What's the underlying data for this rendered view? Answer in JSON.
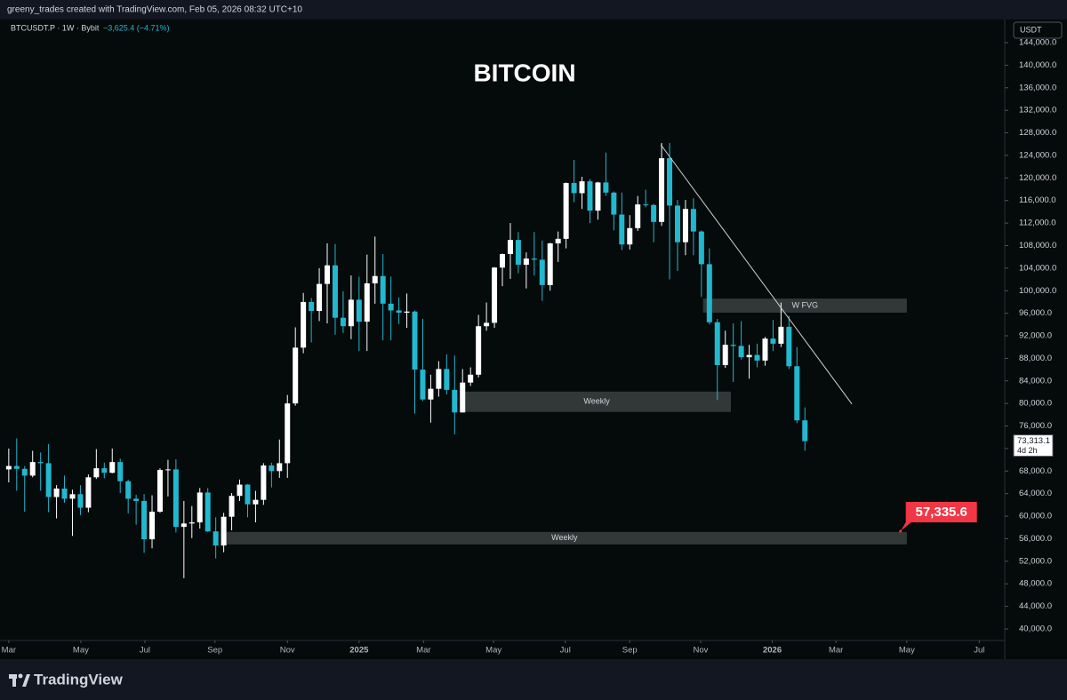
{
  "chart_data": {
    "type": "candlestick",
    "header": "greeny_trades created with TradingView.com, Feb 05, 2026 08:32 UTC+10",
    "symbol": "BTCUSDT.P · 1W · Bybit",
    "change": "−3,625.4 (−4.71%)",
    "title": "BITCOIN",
    "currency": "USDT",
    "footer": "TradingView",
    "up_color": "#ffffff",
    "down_color": "#22b8cf",
    "open": [
      68300,
      68900,
      68400,
      67200,
      69600,
      69400,
      63400,
      64900,
      63100,
      63900,
      61500,
      66900,
      68500,
      67700,
      69600,
      66200,
      63100,
      62700,
      55900,
      60800,
      68200,
      68300,
      58100,
      58700,
      58900,
      64200,
      57300,
      54800,
      59900,
      63600,
      65600,
      62100,
      62900,
      69000,
      68000,
      69400,
      80000,
      89900,
      98000,
      96400,
      101200,
      104500,
      95200,
      93700,
      98400,
      94500,
      101300,
      102600,
      97700,
      96500,
      96100,
      96300,
      86000,
      80700,
      82600,
      86100,
      82400,
      78400,
      83700,
      85100,
      93700,
      94300,
      104100,
      106500,
      109000,
      104600,
      105700,
      105500,
      101000,
      108400,
      109200,
      119100,
      117300,
      119400,
      114200,
      119200,
      117400,
      113500,
      108200,
      111100,
      115300,
      115200,
      112200,
      123500,
      115100,
      108600,
      114500,
      110500,
      104700,
      94400,
      86800,
      90400,
      90200,
      88200,
      88600,
      87600,
      91500,
      90600,
      93600,
      86600,
      77000
    ],
    "high": [
      72000,
      73800,
      68900,
      71600,
      71300,
      72800,
      65500,
      67200,
      64700,
      65500,
      67400,
      71900,
      69500,
      72000,
      70200,
      66500,
      63800,
      63900,
      63700,
      68500,
      70000,
      70100,
      62700,
      61800,
      65000,
      65000,
      59800,
      60600,
      64100,
      66500,
      65700,
      64500,
      69400,
      69500,
      73600,
      81500,
      93500,
      99600,
      98700,
      104000,
      108400,
      108300,
      99900,
      102700,
      102500,
      106400,
      109600,
      106500,
      102500,
      98800,
      99500,
      96500,
      95000,
      85100,
      87500,
      88700,
      88500,
      86100,
      86400,
      95700,
      97900,
      104200,
      106600,
      112000,
      110400,
      106800,
      110400,
      108900,
      108500,
      110500,
      119200,
      123200,
      120200,
      119800,
      119300,
      124500,
      117600,
      117400,
      113400,
      116800,
      117900,
      115400,
      126200,
      126200,
      116100,
      116100,
      116400,
      110700,
      107500,
      95000,
      92900,
      94200,
      94600,
      90400,
      90600,
      91800,
      94800,
      97900,
      95500,
      90000,
      79300
    ],
    "low": [
      66000,
      64500,
      60800,
      66900,
      64500,
      60700,
      59600,
      62400,
      56500,
      60200,
      60700,
      66600,
      66700,
      67600,
      64100,
      60500,
      58500,
      53500,
      54300,
      60600,
      63500,
      57100,
      49000,
      56100,
      57800,
      57200,
      52500,
      53600,
      57500,
      62700,
      59800,
      58900,
      62000,
      65100,
      66800,
      66800,
      79600,
      88900,
      90800,
      94600,
      94200,
      92200,
      92500,
      91400,
      89300,
      89300,
      97700,
      91200,
      91200,
      94100,
      93400,
      78200,
      80400,
      76600,
      81200,
      81600,
      74500,
      78400,
      83100,
      84600,
      92900,
      93400,
      100800,
      102100,
      103100,
      100400,
      102700,
      98200,
      100000,
      105100,
      107500,
      115700,
      114500,
      112000,
      112600,
      116800,
      110700,
      107200,
      107300,
      110600,
      114800,
      108600,
      111500,
      102000,
      103500,
      106300,
      106300,
      98900,
      94000,
      80600,
      86300,
      83800,
      87800,
      84400,
      86400,
      86700,
      89300,
      90000,
      86100,
      76500,
      71600
    ],
    "close": [
      68900,
      68400,
      67200,
      69600,
      69400,
      63400,
      64900,
      63100,
      63900,
      61500,
      66900,
      68500,
      67700,
      69600,
      66200,
      63100,
      62700,
      55900,
      60800,
      68200,
      68300,
      58100,
      58700,
      58900,
      64200,
      57300,
      54800,
      59900,
      63600,
      65600,
      62100,
      62900,
      69000,
      68000,
      69400,
      80000,
      89900,
      98000,
      96400,
      101200,
      104500,
      95200,
      93700,
      98400,
      94500,
      101300,
      102600,
      97700,
      96500,
      96100,
      96300,
      86000,
      80700,
      82600,
      86100,
      82400,
      78400,
      83700,
      85100,
      93700,
      94300,
      104100,
      106500,
      109000,
      104600,
      105700,
      105500,
      101000,
      108400,
      109200,
      119100,
      117300,
      119400,
      114200,
      119200,
      117400,
      113500,
      108200,
      111100,
      115300,
      115200,
      112200,
      123500,
      115100,
      108600,
      114500,
      110500,
      104700,
      94400,
      86800,
      90400,
      90200,
      88200,
      88600,
      87600,
      91500,
      90600,
      93600,
      86600,
      77000,
      73313.1
    ],
    "last_price": {
      "value": 73313.1,
      "label": "73,313.1",
      "countdown": "4d 2h"
    },
    "xlim": [
      -1.1,
      125.1
    ],
    "xticks": [
      {
        "value": 0,
        "label": "Mar"
      },
      {
        "value": 9.05,
        "label": "May"
      },
      {
        "value": 17.1,
        "label": "Jul"
      },
      {
        "value": 25.9,
        "label": "Sep"
      },
      {
        "value": 35,
        "label": "Nov"
      },
      {
        "value": 44,
        "label": "2025"
      },
      {
        "value": 52.1,
        "label": "Mar"
      },
      {
        "value": 60.9,
        "label": "May"
      },
      {
        "value": 69.9,
        "label": "Jul"
      },
      {
        "value": 78,
        "label": "Sep"
      },
      {
        "value": 86.9,
        "label": "Nov"
      },
      {
        "value": 95.9,
        "label": "2026"
      },
      {
        "value": 103.9,
        "label": "Mar"
      },
      {
        "value": 112.8,
        "label": "May"
      },
      {
        "value": 121.9,
        "label": "Jul"
      }
    ],
    "ylim": [
      34640,
      148100
    ],
    "yticks": [
      {
        "value": 144000,
        "label": "144,000.0"
      },
      {
        "value": 140000,
        "label": "140,000.0"
      },
      {
        "value": 136000,
        "label": "136,000.0"
      },
      {
        "value": 132000,
        "label": "132,000.0"
      },
      {
        "value": 128000,
        "label": "128,000.0"
      },
      {
        "value": 124000,
        "label": "124,000.0"
      },
      {
        "value": 120000,
        "label": "120,000.0"
      },
      {
        "value": 116000,
        "label": "116,000.0"
      },
      {
        "value": 112000,
        "label": "112,000.0"
      },
      {
        "value": 108000,
        "label": "108,000.0"
      },
      {
        "value": 104000,
        "label": "104,000.0"
      },
      {
        "value": 100000,
        "label": "100,000.0"
      },
      {
        "value": 96000,
        "label": "96,000.0"
      },
      {
        "value": 92000,
        "label": "92,000.0"
      },
      {
        "value": 88000,
        "label": "88,000.0"
      },
      {
        "value": 84000,
        "label": "84,000.0"
      },
      {
        "value": 80000,
        "label": "80,000.0"
      },
      {
        "value": 76000,
        "label": "76,000.0"
      },
      {
        "value": 72000,
        "label": "72,000.0"
      },
      {
        "value": 68000,
        "label": "68,000.0"
      },
      {
        "value": 64000,
        "label": "64,000.0"
      },
      {
        "value": 60000,
        "label": "60,000.0"
      },
      {
        "value": 56000,
        "label": "56,000.0"
      },
      {
        "value": 52000,
        "label": "52,000.0"
      },
      {
        "value": 48000,
        "label": "48,000.0"
      },
      {
        "value": 44000,
        "label": "44,000.0"
      },
      {
        "value": 40000,
        "label": "40,000.0"
      }
    ],
    "zones": [
      {
        "label": "W FVG",
        "top": 98600,
        "bottom": 96100,
        "start": 87.2,
        "end": 112.8
      },
      {
        "label": "Weekly",
        "top": 82100,
        "bottom": 78500,
        "start": 57,
        "end": 90.7
      },
      {
        "label": "Weekly",
        "top": 57200,
        "bottom": 55000,
        "start": 26.8,
        "end": 112.8
      }
    ],
    "trendline": {
      "x": [
        81.9,
        105.9
      ],
      "y": [
        125900,
        79900
      ]
    },
    "callout": {
      "x": 112,
      "value": 57335.6,
      "label": "57,335.6",
      "color": "#f23645"
    }
  }
}
